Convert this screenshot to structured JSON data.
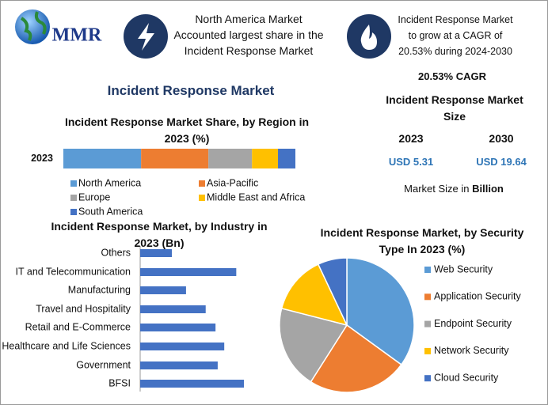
{
  "header": {
    "logo": "MMR",
    "box1": "North America Market Accounted largest share in the Incident Response Market",
    "box2": "Incident Response Market to grow at a CAGR of 20.53% during 2024-2030"
  },
  "title": "Incident Response Market",
  "size_panel": {
    "cagr": "20.53% CAGR",
    "title": "Incident Response Market Size",
    "years": [
      "2023",
      "2030"
    ],
    "values": [
      "USD 5.31",
      "USD 19.64"
    ],
    "note": "Market Size in",
    "note_unit": "Billion"
  },
  "chart_data": [
    {
      "type": "bar",
      "stacked": true,
      "title": "Incident Response Market Share, by Region in 2023 (%)",
      "categories": [
        "2023"
      ],
      "series": [
        {
          "name": "North America",
          "color": "#5b9bd5",
          "values": [
            33.5
          ]
        },
        {
          "name": "Asia-Pacific",
          "color": "#ed7d31",
          "values": [
            29
          ]
        },
        {
          "name": "Europe",
          "color": "#a5a5a5",
          "values": [
            18.8
          ]
        },
        {
          "name": "Middle East and Africa",
          "color": "#ffc000",
          "values": [
            11.2
          ]
        },
        {
          "name": "South America",
          "color": "#4472c4",
          "values": [
            7.5
          ]
        }
      ]
    },
    {
      "type": "bar",
      "stacked": false,
      "title": "Incident Response Market, by Industry in 2023 (Bn)",
      "categories": [
        "Others",
        "IT and Telecommunication",
        "Manufacturing",
        "Travel and Hospitality",
        "Retail and E-Commerce",
        "Healthcare and Life Sciences",
        "Government",
        "BFSI"
      ],
      "values": [
        0.29,
        0.88,
        0.42,
        0.6,
        0.69,
        0.77,
        0.71,
        0.95
      ],
      "color": "#4472c4"
    },
    {
      "type": "pie",
      "title": "Incident Response Market, by Security Type In 2023 (%)",
      "categories": [
        "Web Security",
        "Application Security",
        "Endpoint Security",
        "Network Security",
        "Cloud Security"
      ],
      "values": [
        35,
        24,
        20,
        14,
        7
      ],
      "colors": [
        "#5b9bd5",
        "#ed7d31",
        "#a5a5a5",
        "#ffc000",
        "#4472c4"
      ]
    }
  ]
}
